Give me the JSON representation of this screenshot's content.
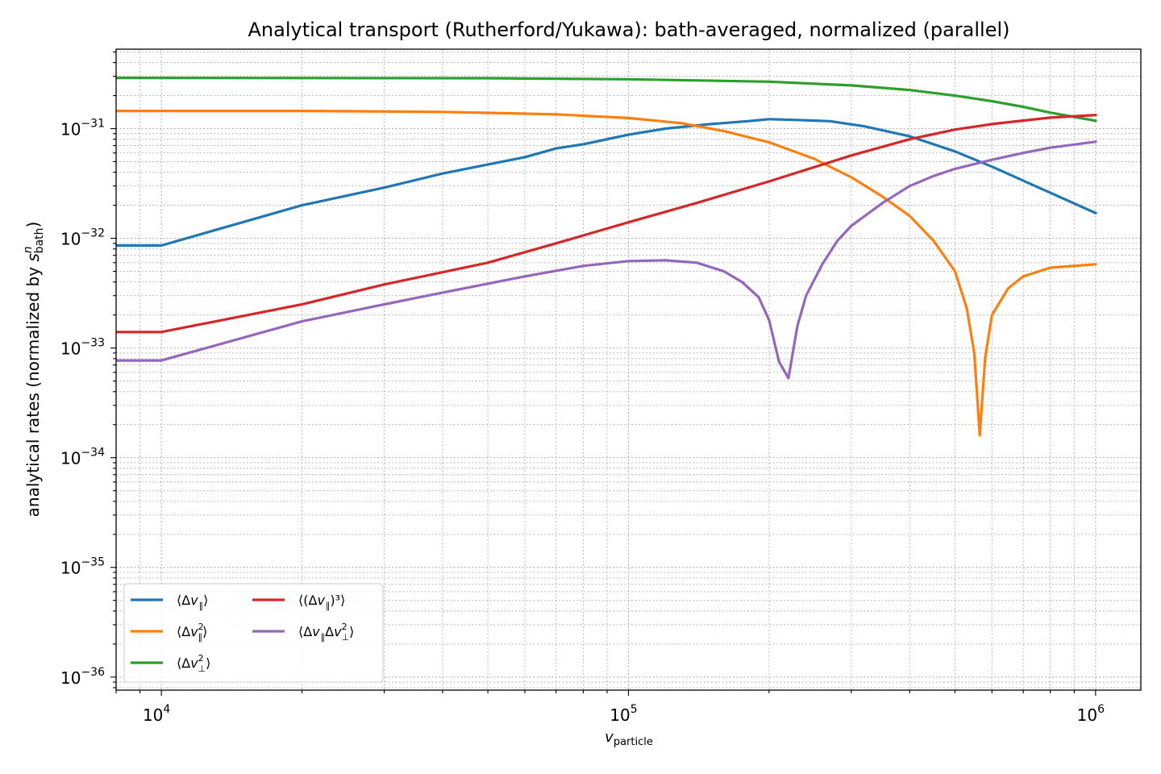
{
  "chart_data": {
    "type": "line",
    "title": "Analytical transport (Rutherford/Yukawa): bath-averaged, normalized (parallel)",
    "xlabel": {
      "base": "v",
      "sub": "particle"
    },
    "ylabel": {
      "prefix": "analytical rates (normalized by ",
      "base": "s",
      "sup": "n",
      "sub": "bath",
      "suffix": ")"
    },
    "xscale": "log",
    "yscale": "log",
    "xlim": [
      8000,
      1250000
    ],
    "ylim": [
      7.6e-37,
      5.3e-31
    ],
    "grid": true,
    "legend_position": "lower-left",
    "x_ticks": [
      {
        "value": 10000,
        "base": "10",
        "exp": "4"
      },
      {
        "value": 100000,
        "base": "10",
        "exp": "5"
      },
      {
        "value": 1000000,
        "base": "10",
        "exp": "6"
      }
    ],
    "y_ticks": [
      {
        "value": 1e-36,
        "base": "10",
        "exp": "−36"
      },
      {
        "value": 1e-35,
        "base": "10",
        "exp": "−35"
      },
      {
        "value": 1e-34,
        "base": "10",
        "exp": "−34"
      },
      {
        "value": 1e-33,
        "base": "10",
        "exp": "−33"
      },
      {
        "value": 1e-32,
        "base": "10",
        "exp": "−32"
      },
      {
        "value": 1e-31,
        "base": "10",
        "exp": "−31"
      }
    ],
    "series": [
      {
        "name": "⟨Δv∥⟩",
        "label": {
          "pre": "⟨Δ",
          "v": "v",
          "sub": "∥",
          "sup": "",
          "mid": "",
          "v2": "",
          "sub2": "",
          "sup2": "",
          "post": "⟩"
        },
        "color": "#1f77b4",
        "points": [
          [
            8000,
            8.6e-33
          ],
          [
            10000,
            8.6e-33
          ],
          [
            20000,
            2e-32
          ],
          [
            30000,
            2.9e-32
          ],
          [
            40000,
            3.9e-32
          ],
          [
            50000,
            4.7e-32
          ],
          [
            60000,
            5.5e-32
          ],
          [
            70000,
            6.6e-32
          ],
          [
            80000,
            7.2e-32
          ],
          [
            100000,
            8.8e-32
          ],
          [
            120000,
            1e-31
          ],
          [
            150000,
            1.1e-31
          ],
          [
            180000,
            1.17e-31
          ],
          [
            200000,
            1.22e-31
          ],
          [
            230000,
            1.2e-31
          ],
          [
            270000,
            1.17e-31
          ],
          [
            320000,
            1.05e-31
          ],
          [
            400000,
            8.5e-32
          ],
          [
            500000,
            6.2e-32
          ],
          [
            600000,
            4.5e-32
          ],
          [
            800000,
            2.6e-32
          ],
          [
            1000000,
            1.7e-32
          ]
        ]
      },
      {
        "name": "⟨Δv∥²⟩",
        "label": {
          "pre": "⟨Δ",
          "v": "v",
          "sub": "∥",
          "sup": "2",
          "mid": "",
          "v2": "",
          "sub2": "",
          "sup2": "",
          "post": "⟩"
        },
        "color": "#ff7f0e",
        "points": [
          [
            8000,
            1.45e-31
          ],
          [
            20000,
            1.45e-31
          ],
          [
            40000,
            1.42e-31
          ],
          [
            70000,
            1.35e-31
          ],
          [
            100000,
            1.25e-31
          ],
          [
            130000,
            1.12e-31
          ],
          [
            160000,
            9.5e-32
          ],
          [
            200000,
            7.5e-32
          ],
          [
            250000,
            5.3e-32
          ],
          [
            300000,
            3.6e-32
          ],
          [
            350000,
            2.4e-32
          ],
          [
            400000,
            1.6e-32
          ],
          [
            450000,
            9.5e-33
          ],
          [
            500000,
            5e-33
          ],
          [
            530000,
            2.3e-33
          ],
          [
            550000,
            9e-34
          ],
          [
            565000,
            1.6e-34
          ],
          [
            580000,
            8e-34
          ],
          [
            600000,
            2e-33
          ],
          [
            650000,
            3.5e-33
          ],
          [
            700000,
            4.5e-33
          ],
          [
            800000,
            5.4e-33
          ],
          [
            1000000,
            5.8e-33
          ]
        ]
      },
      {
        "name": "⟨Δv⊥²⟩",
        "label": {
          "pre": "⟨Δ",
          "v": "v",
          "sub": "⊥",
          "sup": "2",
          "mid": "",
          "v2": "",
          "sub2": "",
          "sup2": "",
          "post": "⟩"
        },
        "color": "#2ca02c",
        "points": [
          [
            8000,
            2.9e-31
          ],
          [
            50000,
            2.88e-31
          ],
          [
            100000,
            2.82e-31
          ],
          [
            200000,
            2.68e-31
          ],
          [
            300000,
            2.48e-31
          ],
          [
            400000,
            2.25e-31
          ],
          [
            500000,
            2e-31
          ],
          [
            600000,
            1.78e-31
          ],
          [
            700000,
            1.58e-31
          ],
          [
            800000,
            1.4e-31
          ],
          [
            900000,
            1.28e-31
          ],
          [
            1000000,
            1.18e-31
          ]
        ]
      },
      {
        "name": "⟨(Δv∥)³⟩",
        "label": {
          "pre": "⟨(Δ",
          "v": "v",
          "sub": "∥",
          "sup": "",
          "mid": "",
          "v2": "",
          "sub2": "",
          "sup2": "",
          "post": ")³⟩"
        },
        "color": "#d62728",
        "points": [
          [
            8000,
            1.4e-33
          ],
          [
            10000,
            1.4e-33
          ],
          [
            20000,
            2.5e-33
          ],
          [
            30000,
            3.8e-33
          ],
          [
            50000,
            6e-33
          ],
          [
            70000,
            9e-33
          ],
          [
            100000,
            1.4e-32
          ],
          [
            140000,
            2.1e-32
          ],
          [
            200000,
            3.3e-32
          ],
          [
            300000,
            5.7e-32
          ],
          [
            400000,
            8e-32
          ],
          [
            500000,
            9.8e-32
          ],
          [
            600000,
            1.1e-31
          ],
          [
            800000,
            1.26e-31
          ],
          [
            1000000,
            1.33e-31
          ]
        ]
      },
      {
        "name": "⟨Δv∥Δv⊥²⟩",
        "label": {
          "pre": "⟨Δ",
          "v": "v",
          "sub": "∥",
          "sup": "",
          "mid": "Δ",
          "v2": "v",
          "sub2": "⊥",
          "sup2": "2",
          "post": "⟩"
        },
        "color": "#9467bd",
        "points": [
          [
            8000,
            7.7e-34
          ],
          [
            10000,
            7.7e-34
          ],
          [
            20000,
            1.75e-33
          ],
          [
            30000,
            2.5e-33
          ],
          [
            40000,
            3.2e-33
          ],
          [
            60000,
            4.5e-33
          ],
          [
            80000,
            5.6e-33
          ],
          [
            100000,
            6.2e-33
          ],
          [
            120000,
            6.3e-33
          ],
          [
            140000,
            6e-33
          ],
          [
            160000,
            5e-33
          ],
          [
            175000,
            4e-33
          ],
          [
            190000,
            2.9e-33
          ],
          [
            200000,
            1.8e-33
          ],
          [
            210000,
            7.5e-34
          ],
          [
            220000,
            5.3e-34
          ],
          [
            230000,
            1.6e-33
          ],
          [
            240000,
            3e-33
          ],
          [
            260000,
            5.8e-33
          ],
          [
            280000,
            9.5e-33
          ],
          [
            300000,
            1.3e-32
          ],
          [
            350000,
            2.1e-32
          ],
          [
            400000,
            3e-32
          ],
          [
            450000,
            3.7e-32
          ],
          [
            500000,
            4.3e-32
          ],
          [
            600000,
            5.2e-32
          ],
          [
            700000,
            6e-32
          ],
          [
            800000,
            6.7e-32
          ],
          [
            1000000,
            7.6e-32
          ]
        ]
      }
    ]
  }
}
